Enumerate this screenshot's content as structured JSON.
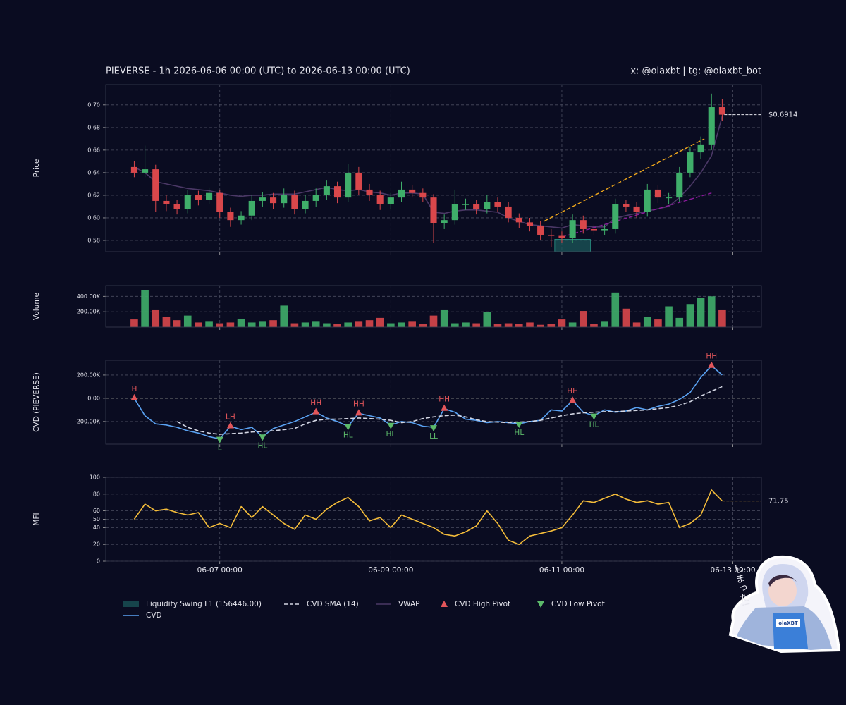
{
  "header": {
    "title": "PIEVERSE - 1h 2026-06-06 00:00 (UTC) to 2026-06-13 00:00 (UTC)",
    "credit": "x: @olaxbt | tg: @olaxbt_bot"
  },
  "sticker": {
    "text": "しまった!",
    "badge": "olaXBT"
  },
  "chart_data": [
    {
      "type": "candlestick",
      "y_label": "Price",
      "x": [
        0,
        3,
        6,
        9,
        12,
        15,
        18,
        21,
        24,
        27,
        30,
        33,
        36,
        39,
        42,
        45,
        48,
        51,
        54,
        57,
        60,
        63,
        66,
        69,
        72,
        75,
        78,
        81,
        84,
        87,
        90,
        93,
        96,
        99,
        102,
        105,
        108,
        111,
        114,
        117,
        120,
        123,
        126,
        129,
        132,
        135,
        138,
        141,
        144,
        147,
        150,
        153,
        156,
        159,
        162,
        165
      ],
      "open": [
        0.645,
        0.64,
        0.643,
        0.615,
        0.612,
        0.608,
        0.62,
        0.616,
        0.622,
        0.605,
        0.598,
        0.602,
        0.615,
        0.618,
        0.613,
        0.62,
        0.608,
        0.615,
        0.62,
        0.628,
        0.618,
        0.64,
        0.625,
        0.62,
        0.612,
        0.618,
        0.625,
        0.622,
        0.618,
        0.595,
        0.598,
        0.612,
        0.612,
        0.608,
        0.614,
        0.61,
        0.6,
        0.596,
        0.593,
        0.585,
        0.584,
        0.582,
        0.598,
        0.59,
        0.589,
        0.59,
        0.612,
        0.61,
        0.605,
        0.625,
        0.618,
        0.618,
        0.64,
        0.658,
        0.665,
        0.698
      ],
      "high": [
        0.65,
        0.664,
        0.647,
        0.62,
        0.616,
        0.625,
        0.624,
        0.627,
        0.625,
        0.609,
        0.606,
        0.62,
        0.623,
        0.622,
        0.626,
        0.624,
        0.62,
        0.626,
        0.633,
        0.632,
        0.648,
        0.645,
        0.63,
        0.624,
        0.622,
        0.632,
        0.629,
        0.626,
        0.621,
        0.603,
        0.625,
        0.617,
        0.616,
        0.62,
        0.618,
        0.614,
        0.604,
        0.6,
        0.597,
        0.59,
        0.588,
        0.603,
        0.602,
        0.594,
        0.594,
        0.617,
        0.616,
        0.614,
        0.63,
        0.629,
        0.622,
        0.645,
        0.663,
        0.672,
        0.71,
        0.705
      ],
      "low": [
        0.636,
        0.636,
        0.605,
        0.606,
        0.603,
        0.604,
        0.611,
        0.612,
        0.6,
        0.592,
        0.594,
        0.598,
        0.61,
        0.608,
        0.609,
        0.603,
        0.604,
        0.61,
        0.616,
        0.613,
        0.614,
        0.62,
        0.615,
        0.607,
        0.608,
        0.614,
        0.618,
        0.614,
        0.578,
        0.59,
        0.594,
        0.607,
        0.603,
        0.604,
        0.605,
        0.596,
        0.591,
        0.588,
        0.58,
        0.574,
        0.578,
        0.578,
        0.586,
        0.585,
        0.585,
        0.586,
        0.605,
        0.6,
        0.601,
        0.613,
        0.612,
        0.614,
        0.636,
        0.652,
        0.66,
        0.686
      ],
      "close": [
        0.64,
        0.643,
        0.615,
        0.612,
        0.608,
        0.62,
        0.616,
        0.622,
        0.605,
        0.598,
        0.602,
        0.615,
        0.618,
        0.613,
        0.62,
        0.608,
        0.615,
        0.62,
        0.628,
        0.618,
        0.64,
        0.625,
        0.62,
        0.612,
        0.618,
        0.625,
        0.622,
        0.618,
        0.595,
        0.598,
        0.612,
        0.612,
        0.608,
        0.614,
        0.61,
        0.6,
        0.596,
        0.593,
        0.585,
        0.584,
        0.582,
        0.598,
        0.59,
        0.589,
        0.59,
        0.612,
        0.61,
        0.605,
        0.625,
        0.618,
        0.618,
        0.64,
        0.658,
        0.665,
        0.698,
        0.6914
      ],
      "up_color": "#3fae6a",
      "down_color": "#d9474b",
      "series": [
        {
          "name": "VWAP",
          "color": "#4b3866",
          "values": [
            0.645,
            0.64,
            0.632,
            0.63,
            0.628,
            0.626,
            0.625,
            0.624,
            0.622,
            0.62,
            0.619,
            0.62,
            0.62,
            0.621,
            0.621,
            0.621,
            0.623,
            0.625,
            0.627,
            0.625,
            0.624,
            0.625,
            0.623,
            0.622,
            0.62,
            0.622,
            0.622,
            0.621,
            0.605,
            0.604,
            0.606,
            0.607,
            0.607,
            0.606,
            0.605,
            0.6,
            0.597,
            0.594,
            0.593,
            0.592,
            0.591,
            0.594,
            0.593,
            0.592,
            0.592,
            0.6,
            0.602,
            0.604,
            0.606,
            0.608,
            0.61,
            0.618,
            0.628,
            0.64,
            0.655,
            0.69
          ]
        }
      ],
      "zone": {
        "name": "Liquidity Swing L1 (156446.00)",
        "color": "#1b5c5e",
        "x": [
          118,
          128
        ],
        "y": [
          0.57,
          0.581
        ]
      },
      "trendlines": [
        {
          "color": "#f0a81c",
          "x": [
            115,
            160
          ],
          "values": [
            0.597,
            0.67
          ]
        },
        {
          "color": "#8a1a9a",
          "x": [
            120,
            162
          ],
          "values": [
            0.583,
            0.622
          ]
        }
      ],
      "last_price": {
        "value": 0.6914,
        "label": "$0.6914"
      },
      "xlim": [
        -8,
        176
      ],
      "ylim": [
        0.57,
        0.718
      ],
      "yticks": [
        {
          "value": 0.58,
          "label": "0.58"
        },
        {
          "value": 0.6,
          "label": "0.60"
        },
        {
          "value": 0.62,
          "label": "0.62"
        },
        {
          "value": 0.64,
          "label": "0.64"
        },
        {
          "value": 0.66,
          "label": "0.66"
        },
        {
          "value": 0.68,
          "label": "0.68"
        },
        {
          "value": 0.7,
          "label": "0.70"
        }
      ],
      "grid": true
    },
    {
      "type": "bar",
      "y_label": "Volume",
      "x": [
        0,
        3,
        6,
        9,
        12,
        15,
        18,
        21,
        24,
        27,
        30,
        33,
        36,
        39,
        42,
        45,
        48,
        51,
        54,
        57,
        60,
        63,
        66,
        69,
        72,
        75,
        78,
        81,
        84,
        87,
        90,
        93,
        96,
        99,
        102,
        105,
        108,
        111,
        114,
        117,
        120,
        123,
        126,
        129,
        132,
        135,
        138,
        141,
        144,
        147,
        150,
        153,
        156,
        159,
        162,
        165
      ],
      "values": [
        100000,
        480000,
        220000,
        130000,
        90000,
        150000,
        60000,
        70000,
        50000,
        60000,
        110000,
        60000,
        70000,
        90000,
        280000,
        50000,
        60000,
        70000,
        50000,
        40000,
        60000,
        70000,
        90000,
        120000,
        50000,
        60000,
        70000,
        40000,
        150000,
        220000,
        50000,
        60000,
        50000,
        200000,
        40000,
        50000,
        40000,
        60000,
        30000,
        40000,
        100000,
        60000,
        210000,
        40000,
        70000,
        450000,
        240000,
        60000,
        130000,
        100000,
        270000,
        120000,
        300000,
        380000,
        400000,
        220000
      ],
      "xlim": [
        -8,
        176
      ],
      "ylim": [
        0,
        540000
      ],
      "yticks": [
        {
          "value": 200000,
          "label": "200.00K"
        },
        {
          "value": 400000,
          "label": "400.00K"
        }
      ],
      "grid": true
    },
    {
      "type": "line",
      "y_label": "CVD (PIEVERSE)",
      "x": [
        0,
        3,
        6,
        9,
        12,
        15,
        18,
        21,
        24,
        27,
        30,
        33,
        36,
        39,
        42,
        45,
        48,
        51,
        54,
        57,
        60,
        63,
        66,
        69,
        72,
        75,
        78,
        81,
        84,
        87,
        90,
        93,
        96,
        99,
        102,
        105,
        108,
        111,
        114,
        117,
        120,
        123,
        126,
        129,
        132,
        135,
        138,
        141,
        144,
        147,
        150,
        153,
        156,
        159,
        162,
        165
      ],
      "series": [
        {
          "name": "CVD",
          "color": "#5aa2f2",
          "values": [
            0,
            -150000,
            -220000,
            -230000,
            -250000,
            -280000,
            -300000,
            -330000,
            -350000,
            -240000,
            -270000,
            -250000,
            -330000,
            -260000,
            -230000,
            -200000,
            -160000,
            -120000,
            -170000,
            -200000,
            -240000,
            -130000,
            -150000,
            -170000,
            -230000,
            -200000,
            -210000,
            -240000,
            -250000,
            -90000,
            -120000,
            -180000,
            -190000,
            -210000,
            -200000,
            -210000,
            -220000,
            -200000,
            -190000,
            -100000,
            -110000,
            -20000,
            -120000,
            -150000,
            -100000,
            -120000,
            -110000,
            -80000,
            -100000,
            -70000,
            -50000,
            -10000,
            50000,
            180000,
            280000,
            200000
          ]
        },
        {
          "name": "CVD SMA (14)",
          "color": "#d4d7e4",
          "dashed": true,
          "values": [
            null,
            null,
            null,
            null,
            -200000,
            -250000,
            -280000,
            -300000,
            -310000,
            -305000,
            -300000,
            -290000,
            -285000,
            -280000,
            -270000,
            -260000,
            -220000,
            -190000,
            -180000,
            -180000,
            -175000,
            -170000,
            -175000,
            -180000,
            -190000,
            -210000,
            -200000,
            -175000,
            -160000,
            -150000,
            -145000,
            -160000,
            -185000,
            -200000,
            -205000,
            -210000,
            -205000,
            -200000,
            -190000,
            -170000,
            -150000,
            -135000,
            -125000,
            -120000,
            -115000,
            -115000,
            -110000,
            -105000,
            -100000,
            -90000,
            -80000,
            -60000,
            -30000,
            20000,
            60000,
            100000
          ]
        }
      ],
      "pivots": [
        {
          "name": "CVD High Pivot",
          "color": "#e2555a",
          "direction": "up",
          "points": [
            {
              "x": 0,
              "value": 0,
              "label": "H"
            },
            {
              "x": 27,
              "value": -240000,
              "label": "LH"
            },
            {
              "x": 51,
              "value": -120000,
              "label": "HH"
            },
            {
              "x": 63,
              "value": -130000,
              "label": "HH"
            },
            {
              "x": 87,
              "value": -90000,
              "label": "HH"
            },
            {
              "x": 123,
              "value": -20000,
              "label": "HH"
            },
            {
              "x": 162,
              "value": 280000,
              "label": "HH"
            }
          ]
        },
        {
          "name": "CVD Low Pivot",
          "color": "#5cba6a",
          "direction": "down",
          "points": [
            {
              "x": 24,
              "value": -350000,
              "label": "L"
            },
            {
              "x": 36,
              "value": -330000,
              "label": "HL"
            },
            {
              "x": 60,
              "value": -240000,
              "label": "HL"
            },
            {
              "x": 72,
              "value": -230000,
              "label": "HL"
            },
            {
              "x": 84,
              "value": -250000,
              "label": "LL"
            },
            {
              "x": 108,
              "value": -220000,
              "label": "HL"
            },
            {
              "x": 129,
              "value": -150000,
              "label": "HL"
            }
          ]
        }
      ],
      "xlim": [
        -8,
        176
      ],
      "ylim": [
        -395000,
        327000
      ],
      "yticks": [
        {
          "value": -200000,
          "label": "-200.00K"
        },
        {
          "value": 0,
          "label": "0.00"
        },
        {
          "value": 200000,
          "label": "200.00K"
        }
      ],
      "grid": true
    },
    {
      "type": "line",
      "y_label": "MFI",
      "x": [
        0,
        3,
        6,
        9,
        12,
        15,
        18,
        21,
        24,
        27,
        30,
        33,
        36,
        39,
        42,
        45,
        48,
        51,
        54,
        57,
        60,
        63,
        66,
        69,
        72,
        75,
        78,
        81,
        84,
        87,
        90,
        93,
        96,
        99,
        102,
        105,
        108,
        111,
        114,
        117,
        120,
        123,
        126,
        129,
        132,
        135,
        138,
        141,
        144,
        147,
        150,
        153,
        156,
        159,
        162,
        165
      ],
      "series": [
        {
          "color": "#f5bd3a",
          "values": [
            50,
            68,
            60,
            62,
            58,
            55,
            58,
            40,
            45,
            40,
            65,
            52,
            65,
            55,
            45,
            38,
            55,
            50,
            62,
            70,
            76,
            65,
            48,
            52,
            40,
            55,
            50,
            45,
            40,
            32,
            30,
            35,
            42,
            60,
            45,
            25,
            20,
            30,
            33,
            36,
            40,
            55,
            72,
            70,
            75,
            80,
            74,
            70,
            72,
            68,
            70,
            40,
            45,
            55,
            85,
            71.75
          ]
        }
      ],
      "last_value": 71.75,
      "xlim": [
        -8,
        176
      ],
      "ylim": [
        0,
        100
      ],
      "yticks": [
        0,
        20,
        40,
        50,
        60,
        80,
        100
      ],
      "xticks": [
        {
          "value": 24,
          "label": "06-07 00:00"
        },
        {
          "value": 72,
          "label": "06-09 00:00"
        },
        {
          "value": 120,
          "label": "06-11 00:00"
        },
        {
          "value": 168,
          "label": "06-13 00:00"
        }
      ],
      "grid": true
    }
  ]
}
